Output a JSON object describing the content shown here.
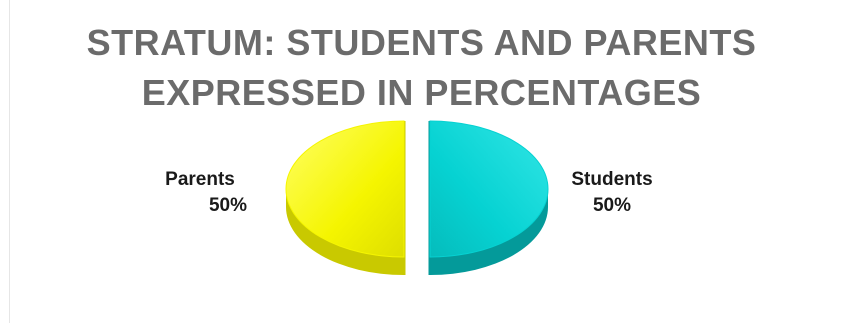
{
  "chart_data": {
    "type": "pie",
    "style": "3d-exploded-half",
    "title_lines": [
      "STRATUM: STUDENTS AND PARENTS",
      "EXPRESSED IN PERCENTAGES"
    ],
    "slices": [
      {
        "label": "Parents",
        "value": 50,
        "display": "50%",
        "color": "#f5f500",
        "shade": "#c9c900"
      },
      {
        "label": "Students",
        "value": 50,
        "display": "50%",
        "color": "#06d2d2",
        "shade": "#049a9a"
      }
    ],
    "legend": "none",
    "data_labels": "outside"
  }
}
